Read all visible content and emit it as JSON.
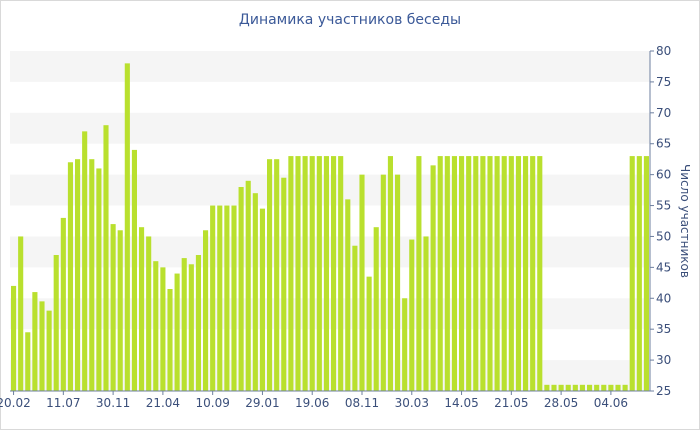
{
  "chart_data": {
    "type": "bar",
    "title": "Динамика участников беседы",
    "xlabel": "",
    "ylabel": "Число участников",
    "ylim": [
      25,
      80
    ],
    "y_ticks": [
      25,
      30,
      35,
      40,
      45,
      50,
      55,
      60,
      65,
      70,
      75,
      80
    ],
    "y_axis_side": "right",
    "grid": "alternating horizontal bands",
    "bar_color": "#b9e02e",
    "band_color": "#f5f5f5",
    "x_tick_labels": [
      "20.02",
      "11.07",
      "30.11",
      "21.04",
      "10.09",
      "29.01",
      "19.06",
      "08.11",
      "30.03",
      "14.05",
      "21.05",
      "28.05",
      "04.06"
    ],
    "x_tick_label_bar_index": [
      0,
      7,
      14,
      21,
      28,
      35,
      42,
      49,
      56,
      63,
      70,
      77,
      84
    ],
    "values": [
      42,
      50,
      34.5,
      41,
      39.5,
      38,
      47,
      53,
      62,
      62.5,
      67,
      62.5,
      61,
      68,
      52,
      51,
      78,
      64,
      51.5,
      50,
      46,
      45,
      41.5,
      44,
      46.5,
      45.5,
      47,
      51,
      55,
      55,
      55,
      55,
      58,
      59,
      57,
      54.5,
      62.5,
      62.5,
      59.5,
      63,
      63,
      63,
      63,
      63,
      63,
      63,
      63,
      56,
      48.5,
      60,
      43.5,
      51.5,
      60,
      63,
      60,
      40,
      49.5,
      63,
      50,
      61.5,
      63,
      63,
      63,
      63,
      63,
      63,
      63,
      63,
      63,
      63,
      63,
      63,
      63,
      63,
      63,
      26,
      26,
      26,
      26,
      26,
      26,
      26,
      26,
      26,
      26,
      26,
      26,
      63,
      63,
      63
    ]
  }
}
